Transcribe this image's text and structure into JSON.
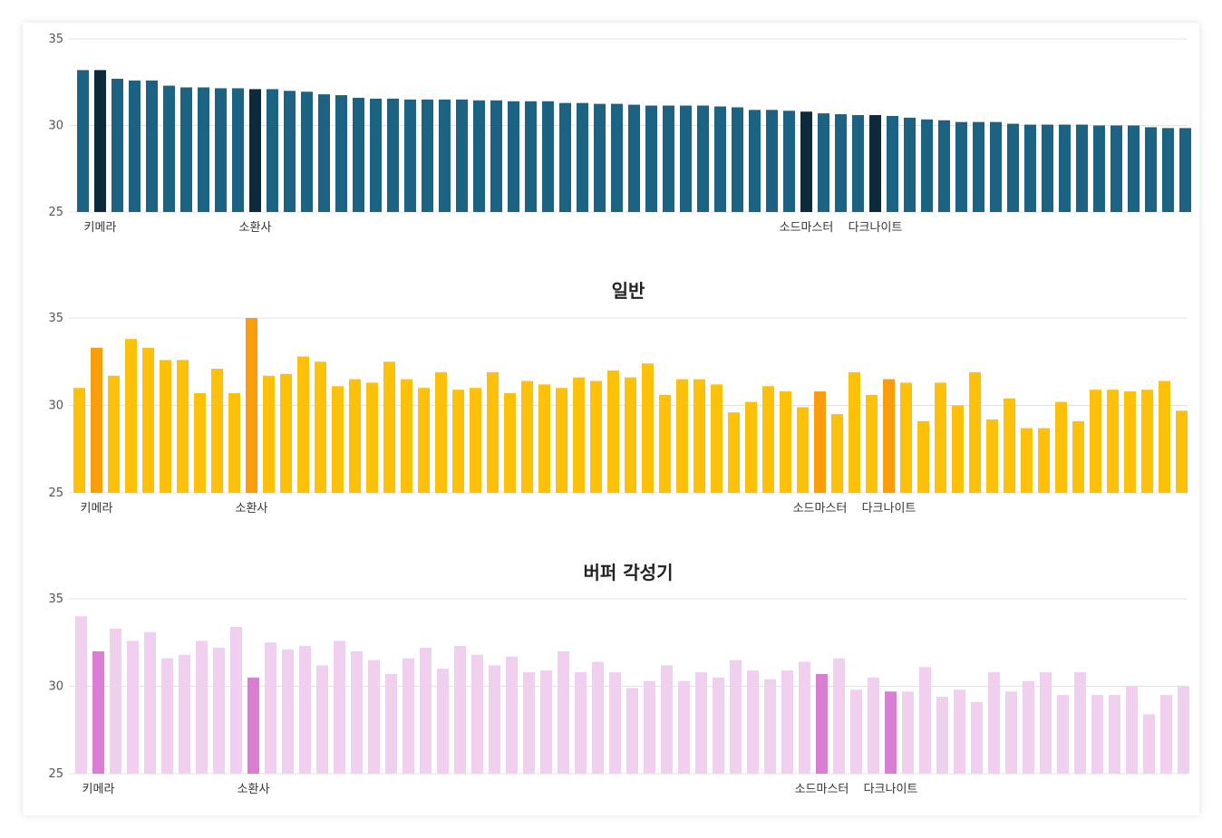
{
  "chart_data": [
    {
      "type": "bar",
      "title": "",
      "ylim": [
        25,
        35
      ],
      "yticks": [
        "25",
        "30",
        "35"
      ],
      "grid": true,
      "colors": {
        "base": "#1b6283",
        "highlight": "#0d2a3d"
      },
      "labeled_categories": [
        {
          "index": 1,
          "label": "키메라"
        },
        {
          "index": 10,
          "label": "소환사"
        },
        {
          "index": 42,
          "label": "소드마스터"
        },
        {
          "index": 46,
          "label": "다크나이트"
        }
      ],
      "highlight_indices": [
        1,
        10,
        42,
        46
      ],
      "values": [
        33.2,
        33.2,
        32.7,
        32.6,
        32.6,
        32.3,
        32.2,
        32.2,
        32.15,
        32.15,
        32.1,
        32.1,
        32.0,
        31.95,
        31.8,
        31.75,
        31.6,
        31.55,
        31.55,
        31.5,
        31.5,
        31.5,
        31.5,
        31.45,
        31.45,
        31.4,
        31.4,
        31.4,
        31.3,
        31.3,
        31.25,
        31.25,
        31.2,
        31.15,
        31.15,
        31.15,
        31.15,
        31.1,
        31.05,
        30.9,
        30.9,
        30.85,
        30.8,
        30.7,
        30.65,
        30.6,
        30.6,
        30.55,
        30.45,
        30.35,
        30.3,
        30.2,
        30.2,
        30.2,
        30.1,
        30.05,
        30.05,
        30.05,
        30.05,
        30.0,
        30.0,
        30.0,
        29.9,
        29.85,
        29.85
      ]
    },
    {
      "type": "bar",
      "title": "일반",
      "ylim": [
        25,
        35
      ],
      "yticks": [
        "25",
        "30",
        "35"
      ],
      "grid": true,
      "colors": {
        "base": "#fdc10a",
        "highlight": "#fb9c0c"
      },
      "labeled_categories": [
        {
          "index": 1,
          "label": "키메라"
        },
        {
          "index": 10,
          "label": "소환사"
        },
        {
          "index": 43,
          "label": "소드마스터"
        },
        {
          "index": 47,
          "label": "다크나이트"
        }
      ],
      "highlight_indices": [
        1,
        10,
        43,
        47
      ],
      "values": [
        31.0,
        33.3,
        31.7,
        33.8,
        33.3,
        32.6,
        32.6,
        30.7,
        32.1,
        30.7,
        35.0,
        31.7,
        31.8,
        32.8,
        32.5,
        31.1,
        31.5,
        31.3,
        32.5,
        31.5,
        31.0,
        31.9,
        30.9,
        31.0,
        31.9,
        30.7,
        31.4,
        31.2,
        31.0,
        31.6,
        31.4,
        32.0,
        31.6,
        32.4,
        30.6,
        31.5,
        31.5,
        31.2,
        29.6,
        30.2,
        31.1,
        30.8,
        29.9,
        30.8,
        29.5,
        31.9,
        30.6,
        31.5,
        31.3,
        29.1,
        31.3,
        30.0,
        31.9,
        29.2,
        30.4,
        28.7,
        28.7,
        30.2,
        29.1,
        30.9,
        30.9,
        30.8,
        30.9,
        31.4,
        29.7
      ]
    },
    {
      "type": "bar",
      "title": "버퍼 각성기",
      "ylim": [
        25,
        35
      ],
      "yticks": [
        "25",
        "30",
        "35"
      ],
      "grid": true,
      "colors": {
        "base": "#f1cfef",
        "highlight": "#d97ed3"
      },
      "labeled_categories": [
        {
          "index": 1,
          "label": "키메라"
        },
        {
          "index": 10,
          "label": "소환사"
        },
        {
          "index": 43,
          "label": "소드마스터"
        },
        {
          "index": 47,
          "label": "다크나이트"
        }
      ],
      "highlight_indices": [
        1,
        10,
        43,
        47
      ],
      "values": [
        34.0,
        32.0,
        33.3,
        32.6,
        33.1,
        31.6,
        31.8,
        32.6,
        32.2,
        33.4,
        30.5,
        32.5,
        32.1,
        32.3,
        31.2,
        32.6,
        32.0,
        31.5,
        30.7,
        31.6,
        32.2,
        31.0,
        32.3,
        31.8,
        31.2,
        31.7,
        30.8,
        30.9,
        32.0,
        30.8,
        31.4,
        30.8,
        29.9,
        30.3,
        31.2,
        30.3,
        30.8,
        30.5,
        31.5,
        30.9,
        30.4,
        30.9,
        31.4,
        30.7,
        31.6,
        29.8,
        30.5,
        29.7,
        29.7,
        31.1,
        29.4,
        29.8,
        29.1,
        30.8,
        29.7,
        30.3,
        30.8,
        29.5,
        30.8,
        29.5,
        29.5,
        30.0,
        28.4,
        29.5,
        30.0
      ]
    }
  ]
}
